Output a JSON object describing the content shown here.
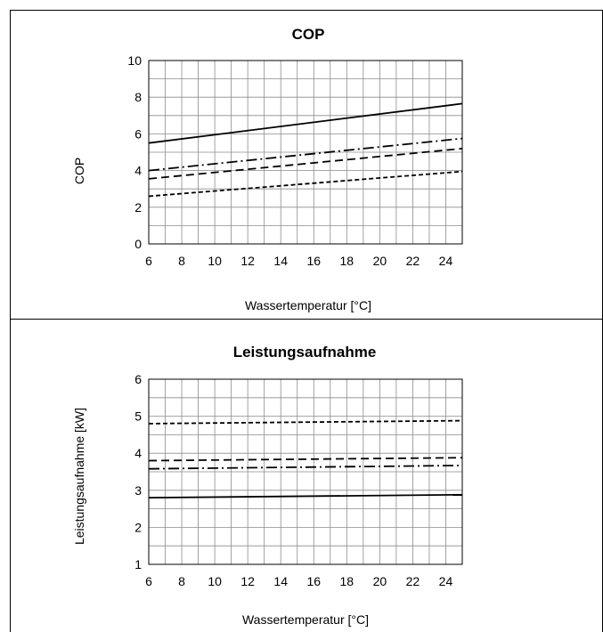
{
  "charts": [
    {
      "title": "COP",
      "xlabel": "Wassertemperatur [°C]",
      "ylabel": "COP",
      "xticks": [
        "6",
        "8",
        "10",
        "12",
        "14",
        "16",
        "18",
        "20",
        "22",
        "24"
      ],
      "yticks": [
        "0",
        "2",
        "4",
        "6",
        "8",
        "10"
      ]
    },
    {
      "title": "Leistungsaufnahme",
      "xlabel": "Wassertemperatur [°C]",
      "ylabel": "Leistungsaufnahme [kW]",
      "xticks": [
        "6",
        "8",
        "10",
        "12",
        "14",
        "16",
        "18",
        "20",
        "22",
        "24"
      ],
      "yticks": [
        "1",
        "2",
        "3",
        "4",
        "5",
        "6"
      ]
    }
  ],
  "chart_data": [
    {
      "type": "line",
      "title": "COP",
      "xlabel": "Wassertemperatur [°C]",
      "ylabel": "COP",
      "xlim": [
        6,
        25
      ],
      "ylim": [
        0,
        10
      ],
      "x_minor_step": 1,
      "y_minor_step": 1,
      "grid": true,
      "series": [
        {
          "style": "solid",
          "x": [
            6,
            25
          ],
          "y": [
            5.5,
            7.65
          ]
        },
        {
          "style": "dash-dot",
          "x": [
            6,
            25
          ],
          "y": [
            4.0,
            5.75
          ]
        },
        {
          "style": "dashed",
          "x": [
            6,
            25
          ],
          "y": [
            3.55,
            5.2
          ]
        },
        {
          "style": "short-dash",
          "x": [
            6,
            25
          ],
          "y": [
            2.6,
            3.95
          ]
        }
      ]
    },
    {
      "type": "line",
      "title": "Leistungsaufnahme",
      "xlabel": "Wassertemperatur [°C]",
      "ylabel": "Leistungsaufnahme [kW]",
      "xlim": [
        6,
        25
      ],
      "ylim": [
        1,
        6
      ],
      "x_minor_step": 1,
      "y_minor_step": 0.5,
      "grid": true,
      "series": [
        {
          "style": "short-dash",
          "x": [
            6,
            25
          ],
          "y": [
            4.8,
            4.88
          ]
        },
        {
          "style": "dashed",
          "x": [
            6,
            25
          ],
          "y": [
            3.8,
            3.88
          ]
        },
        {
          "style": "dash-dot",
          "x": [
            6,
            25
          ],
          "y": [
            3.58,
            3.67
          ]
        },
        {
          "style": "solid",
          "x": [
            6,
            25
          ],
          "y": [
            2.8,
            2.88
          ]
        }
      ]
    }
  ]
}
